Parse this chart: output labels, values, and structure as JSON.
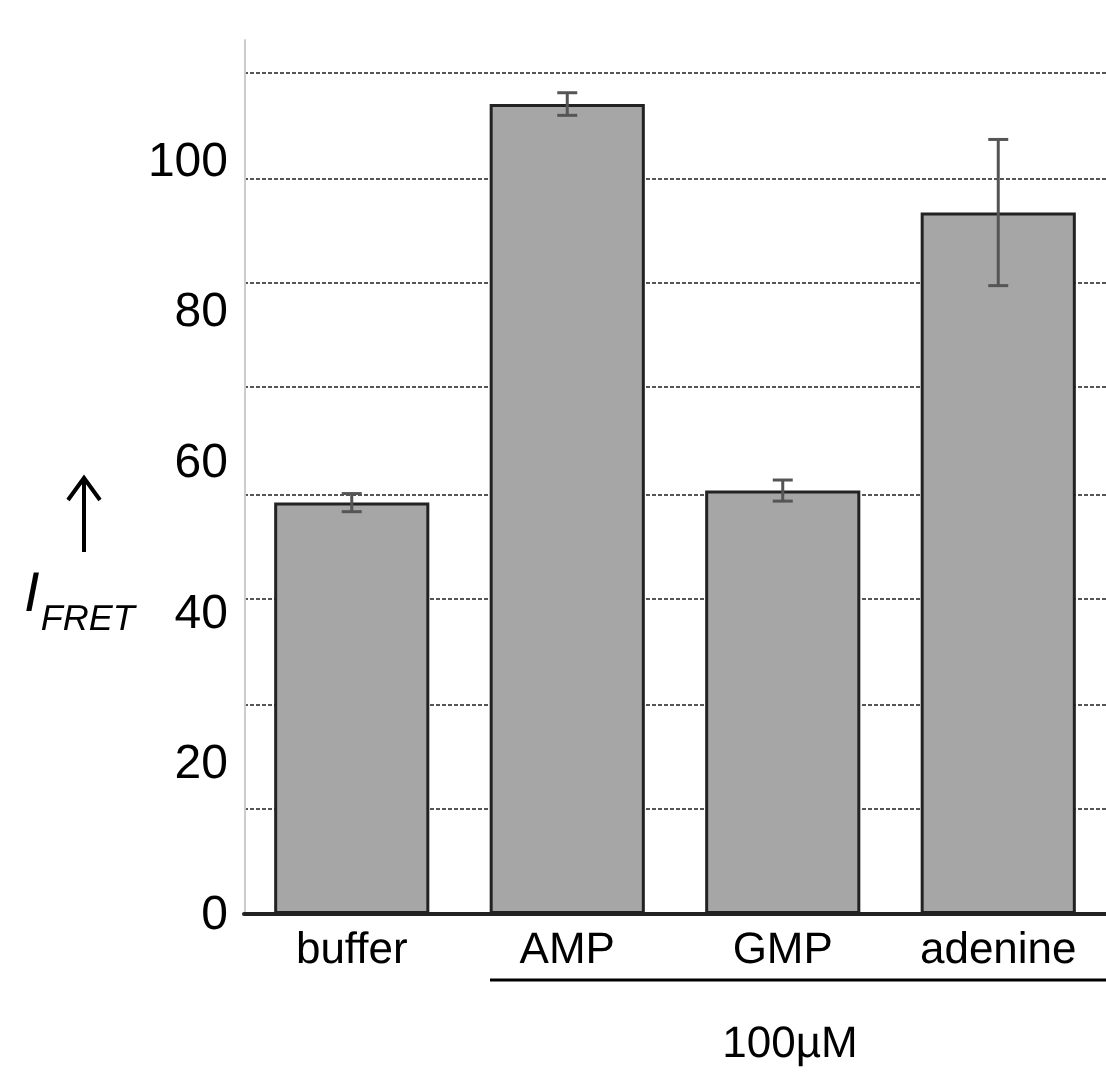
{
  "chart_data": {
    "type": "bar",
    "ylabel": "I$_{FRET}$",
    "categories": [
      "buffer",
      "AMP",
      "GMP",
      "adenine"
    ],
    "values": [
      54.6,
      107.5,
      56.2,
      93.1
    ],
    "errors": [
      1.2,
      1.5,
      1.4,
      9.7
    ],
    "color": "#a6a6a6",
    "ylim": [
      0,
      116
    ],
    "yticks": [
      0,
      20,
      40,
      60,
      80,
      100,
      {
        "value": 13.9,
        "label": null
      },
      {
        "value": 27.7,
        "label": null
      },
      {
        "value": 41.9,
        "label": null
      },
      {
        "value": 55.7,
        "label": null
      },
      {
        "value": 69.9,
        "label": null
      },
      {
        "value": 83.7,
        "label": null
      },
      {
        "value": 97.6,
        "label": null
      },
      {
        "value": 111.7,
        "label": null
      }
    ],
    "grid": "y",
    "annotations": [
      "100µM"
    ]
  }
}
